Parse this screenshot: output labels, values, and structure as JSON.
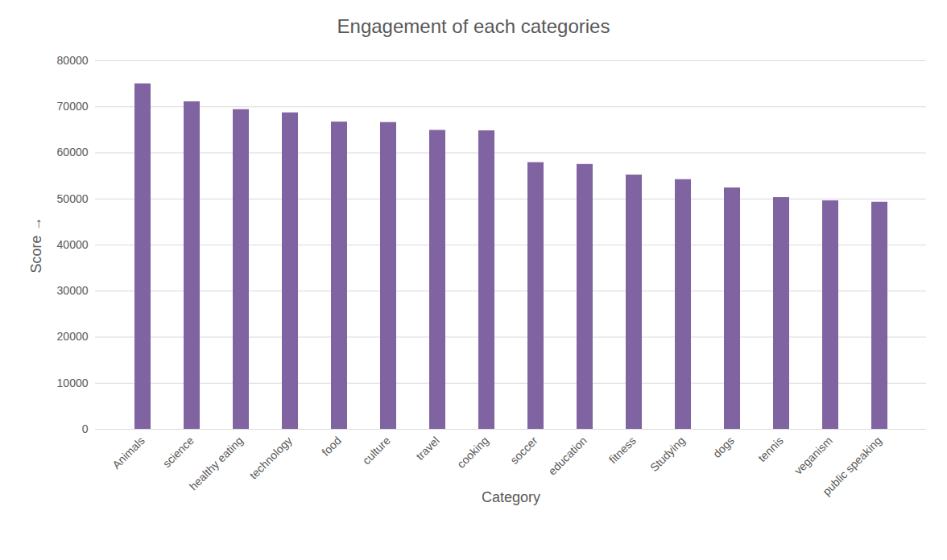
{
  "chart_data": {
    "type": "bar",
    "title": "Engagement of each categories",
    "x_label": "Category",
    "y_label": "Score",
    "categories": [
      "Animals",
      "science",
      "healthy eating",
      "technology",
      "food",
      "culture",
      "travel",
      "cooking",
      "soccer",
      "education",
      "fitness",
      "Studying",
      "dogs",
      "tennis",
      "veganism",
      "public speaking"
    ],
    "values": [
      75000,
      71100,
      69400,
      68700,
      66700,
      66600,
      64900,
      64800,
      57900,
      57500,
      55200,
      54200,
      52400,
      50300,
      49600,
      49300
    ],
    "color": "#8064a2",
    "ylim": [
      0,
      80000
    ],
    "yticks": [
      0,
      10000,
      20000,
      30000,
      40000,
      50000,
      60000,
      70000,
      80000
    ],
    "grid": true
  }
}
